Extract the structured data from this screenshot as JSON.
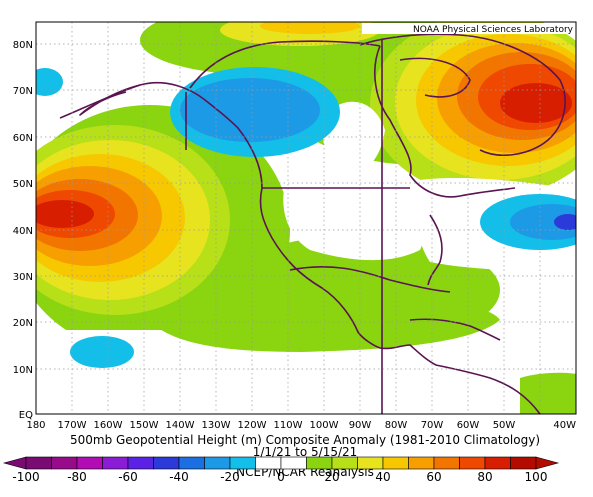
{
  "credit": "NOAA Physical Sciences Laboratory",
  "title": "500mb Geopotential Height (m) Composite Anomaly (1981-2010 Climatology)",
  "date_range": "1/1/21 to 5/15/21",
  "source": "NCEP/NCAR Reanalysis",
  "lat_labels": [
    "80N",
    "70N",
    "60N",
    "50N",
    "40N",
    "30N",
    "20N",
    "10N",
    "EQ"
  ],
  "lon_labels": [
    "180",
    "170W",
    "160W",
    "150W",
    "140W",
    "130W",
    "120W",
    "110W",
    "100W",
    "90W",
    "80W",
    "70W",
    "60W",
    "50W",
    "40W"
  ],
  "colorbar": {
    "labels": [
      "-100",
      "-80",
      "-60",
      "-40",
      "-20",
      "0",
      "20",
      "40",
      "60",
      "80",
      "100"
    ],
    "colors": [
      "#7a0b73",
      "#970a8a",
      "#b20db5",
      "#8a1cd6",
      "#5b22e6",
      "#2b3ad9",
      "#1b6fe0",
      "#1d9ae6",
      "#13bee8",
      "#ffffff",
      "#ffffff",
      "#8ad410",
      "#b7e019",
      "#e7e41f",
      "#f7c800",
      "#f79f00",
      "#f27500",
      "#ef4800",
      "#d81e00",
      "#b40b00"
    ]
  },
  "colors": {
    "land": "#5a1450",
    "white_zone": "#ffffff"
  }
}
